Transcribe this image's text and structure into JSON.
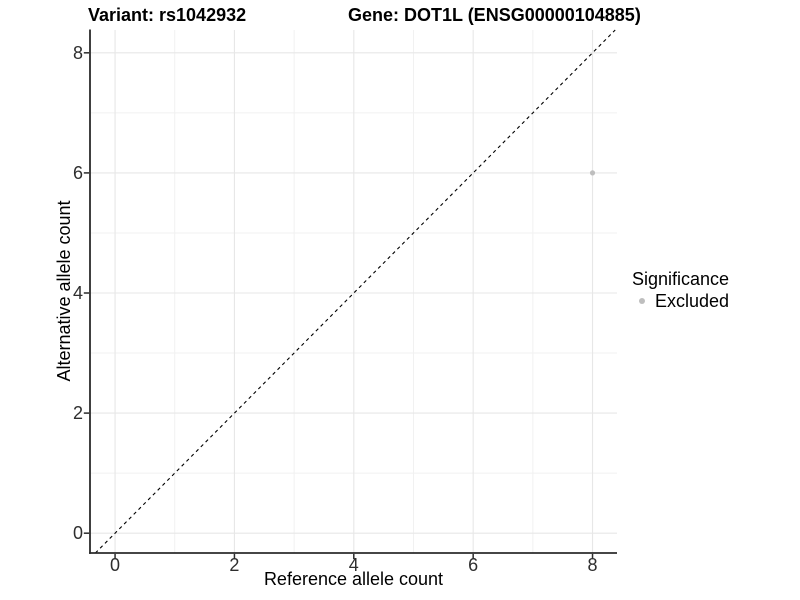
{
  "figure": {
    "title_left": "Variant: rs1042932",
    "title_right": "Gene: DOT1L (ENSG00000104885)"
  },
  "chart_data": {
    "type": "scatter",
    "xlabel": "Reference allele count",
    "ylabel": "Alternative allele count",
    "xlim": [
      -0.42,
      8.41
    ],
    "ylim": [
      -0.33,
      8.38
    ],
    "x_ticks": [
      0,
      2,
      4,
      6,
      8
    ],
    "x_minor_ticks": [
      1,
      3,
      5,
      7
    ],
    "y_ticks": [
      0,
      2,
      4,
      6,
      8
    ],
    "y_minor_ticks": [
      1,
      3,
      5,
      7
    ],
    "grid": "major+minor",
    "identity_line": {
      "equation": "y = x",
      "style": "dashed",
      "color": "#000000"
    },
    "series": [
      {
        "name": "Excluded",
        "color": "#bebebe",
        "points": [
          {
            "x": 8,
            "y": 6
          }
        ]
      }
    ],
    "legend": {
      "title": "Significance",
      "position": "right",
      "items": [
        {
          "label": "Excluded",
          "color": "#bebebe",
          "marker": "circle"
        }
      ]
    }
  }
}
